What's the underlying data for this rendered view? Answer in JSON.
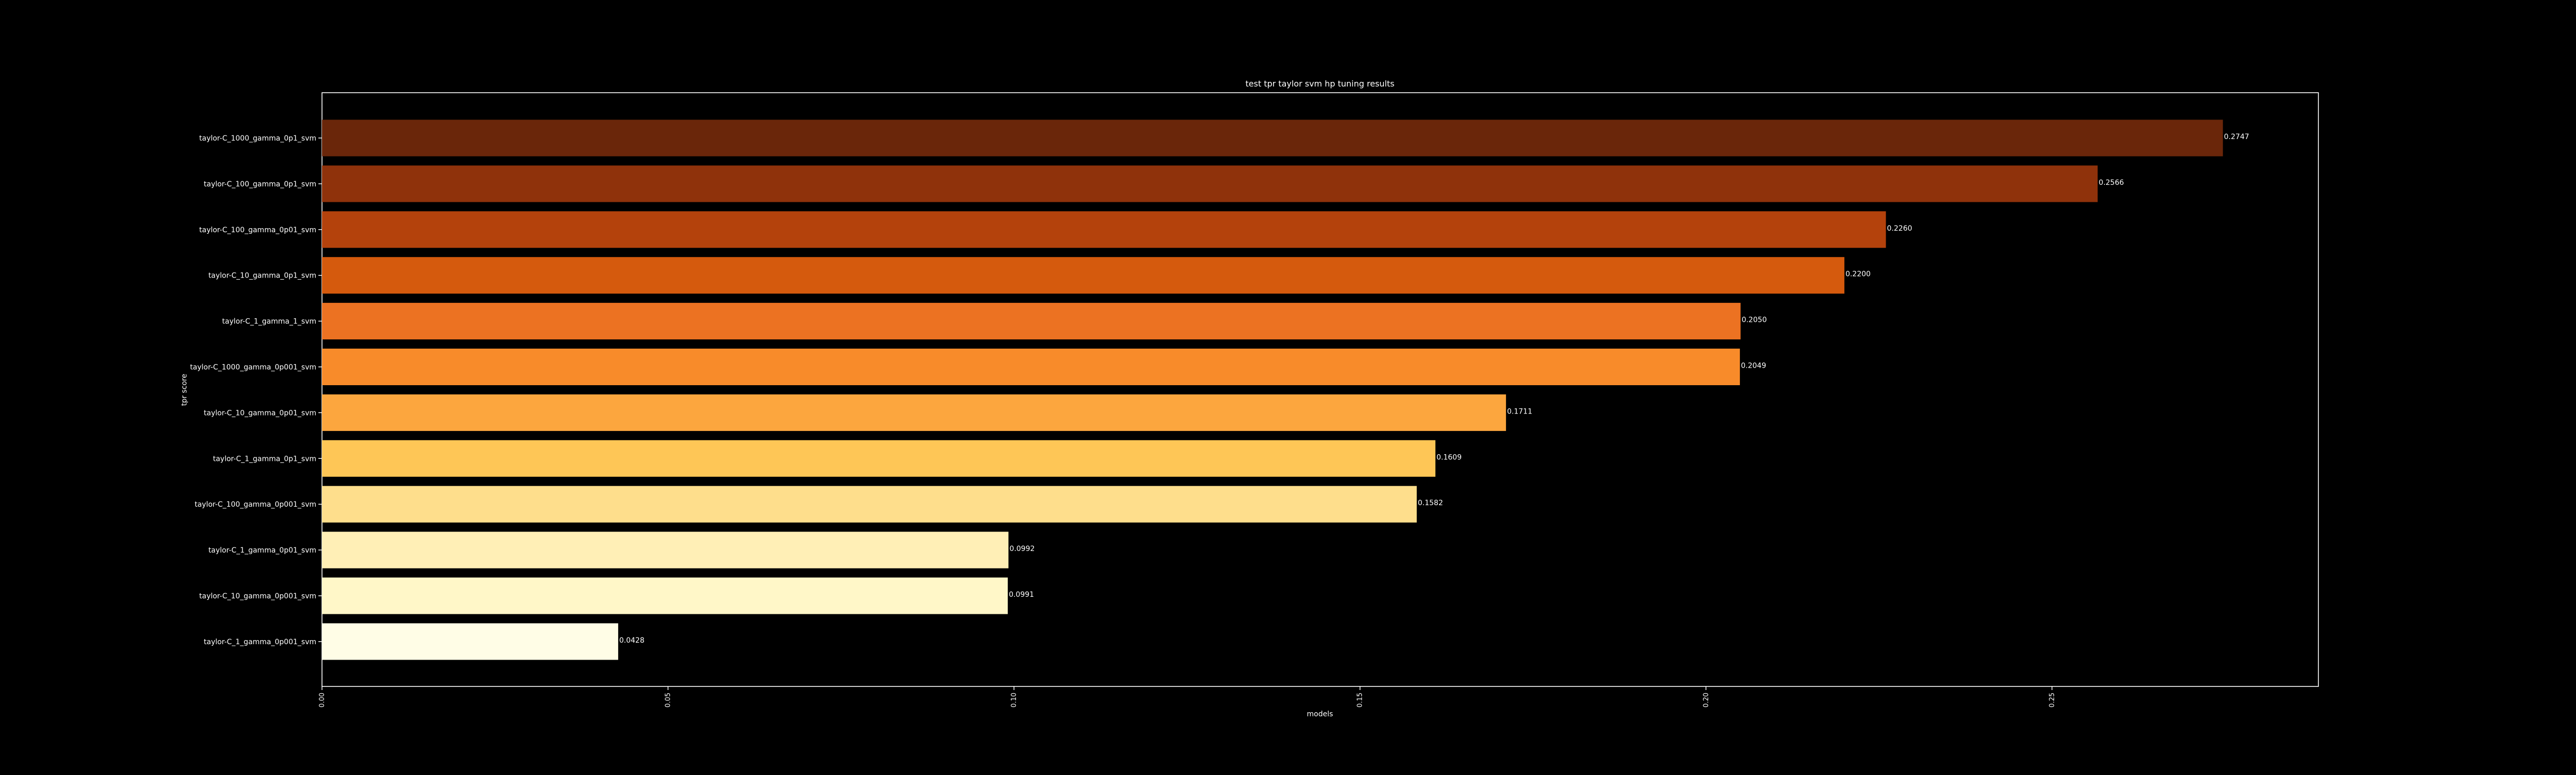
{
  "chart_data": {
    "type": "bar",
    "orientation": "horizontal",
    "title": "test tpr taylor svm hp tuning results",
    "xlabel": "models",
    "ylabel": "tpr score",
    "xlim": [
      0,
      0.2885
    ],
    "xticks": [
      "0.00",
      "0.05",
      "0.10",
      "0.15",
      "0.20",
      "0.25"
    ],
    "categories": [
      "taylor-C_1000_gamma_0p1_svm",
      "taylor-C_100_gamma_0p1_svm",
      "taylor-C_100_gamma_0p01_svm",
      "taylor-C_10_gamma_0p1_svm",
      "taylor-C_1_gamma_1_svm",
      "taylor-C_1000_gamma_0p001_svm",
      "taylor-C_10_gamma_0p01_svm",
      "taylor-C_1_gamma_0p1_svm",
      "taylor-C_100_gamma_0p001_svm",
      "taylor-C_1_gamma_0p01_svm",
      "taylor-C_10_gamma_0p001_svm",
      "taylor-C_1_gamma_0p001_svm"
    ],
    "values": [
      0.2747,
      0.2566,
      0.226,
      0.22,
      0.205,
      0.2049,
      0.1711,
      0.1609,
      0.1582,
      0.0992,
      0.0991,
      0.0428
    ],
    "labels": [
      "0.2747",
      "0.2566",
      "0.2260",
      "0.2200",
      "0.2050",
      "0.2049",
      "0.1711",
      "0.1609",
      "0.1582",
      "0.0992",
      "0.0991",
      "0.0428"
    ],
    "colors": [
      "#6a260a",
      "#8f320b",
      "#b4420c",
      "#d55a0d",
      "#ec7222",
      "#f88b2a",
      "#fca63e",
      "#fec656",
      "#fede8c",
      "#ffefb6",
      "#fff7c8",
      "#fffde6"
    ],
    "background": "#000000",
    "frame_color": "#ffffff",
    "grid": false,
    "legend": "none"
  }
}
